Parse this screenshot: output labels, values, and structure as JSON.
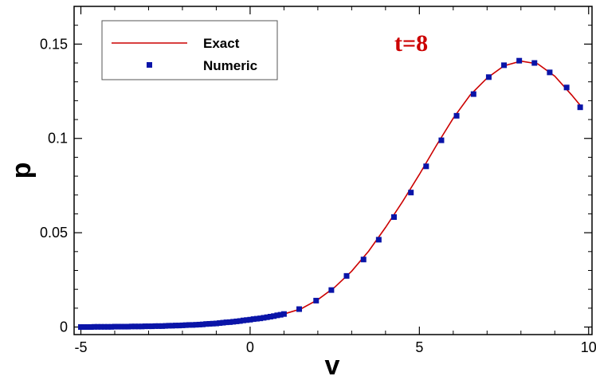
{
  "chart_data": {
    "type": "scatter",
    "xlabel": "v",
    "ylabel": "p",
    "xlim": [
      -5.2,
      10.1
    ],
    "ylim": [
      -0.004,
      0.17
    ],
    "xticks": [
      -5,
      0,
      5,
      10
    ],
    "yticks": [
      0,
      0.05,
      0.1,
      0.15
    ],
    "ytick_labels": [
      "0",
      "0.05",
      "0.1",
      "0.15"
    ],
    "xtick_labels": [
      "-5",
      "0",
      "5",
      "10"
    ],
    "annotation": "t=8",
    "legend_position": "top-left",
    "grid": false,
    "colors": {
      "exact": "#cc0000",
      "numeric": "#0a14a8",
      "annotation": "#cc0000"
    },
    "series": [
      {
        "name": "Exact",
        "style": "line",
        "x": [
          -5,
          -4.5,
          -4,
          -3.5,
          -3,
          -2.5,
          -2,
          -1.5,
          -1,
          -0.5,
          0,
          0.5,
          1,
          1.5,
          2,
          2.5,
          3,
          3.5,
          4,
          4.5,
          5,
          5.5,
          6,
          6.5,
          7,
          7.5,
          8,
          8.5,
          9,
          9.5,
          9.8
        ],
        "y": [
          0.0,
          0.0001,
          0.0002,
          0.0003,
          0.0004,
          0.0006,
          0.0009,
          0.0013,
          0.0019,
          0.0028,
          0.0039,
          0.0052,
          0.0069,
          0.0096,
          0.0145,
          0.0211,
          0.0296,
          0.0402,
          0.0528,
          0.0664,
          0.0809,
          0.0962,
          0.1107,
          0.123,
          0.132,
          0.1385,
          0.141,
          0.1395,
          0.133,
          0.123,
          0.1165
        ]
      },
      {
        "name": "Numeric",
        "style": "markers",
        "x": [
          -5.0,
          -4.9,
          -4.8,
          -4.7,
          -4.6,
          -4.5,
          -4.4,
          -4.3,
          -4.2,
          -4.1,
          -4.0,
          -3.9,
          -3.8,
          -3.7,
          -3.6,
          -3.5,
          -3.4,
          -3.3,
          -3.2,
          -3.1,
          -3.0,
          -2.9,
          -2.8,
          -2.7,
          -2.6,
          -2.5,
          -2.4,
          -2.3,
          -2.2,
          -2.1,
          -2.0,
          -1.9,
          -1.8,
          -1.7,
          -1.6,
          -1.5,
          -1.4,
          -1.3,
          -1.2,
          -1.1,
          -1.0,
          -0.9,
          -0.8,
          -0.7,
          -0.6,
          -0.5,
          -0.4,
          -0.3,
          -0.2,
          -0.1,
          0.0,
          0.1,
          0.2,
          0.3,
          0.4,
          0.5,
          0.6,
          0.7,
          0.8,
          0.9,
          1.0,
          1.45,
          1.95,
          2.4,
          2.85,
          3.35,
          3.8,
          4.25,
          4.75,
          5.2,
          5.65,
          6.1,
          6.6,
          7.05,
          7.5,
          7.95,
          8.4,
          8.85,
          9.35,
          9.75
        ],
        "y": [
          0.0,
          0.0,
          0.0,
          0.0,
          0.0001,
          0.0001,
          0.0001,
          0.0001,
          0.0001,
          0.0001,
          0.0002,
          0.0002,
          0.0002,
          0.0002,
          0.0002,
          0.0003,
          0.0003,
          0.0003,
          0.0003,
          0.0004,
          0.0004,
          0.0004,
          0.0005,
          0.0005,
          0.0005,
          0.0006,
          0.0007,
          0.0007,
          0.0008,
          0.0008,
          0.0009,
          0.001,
          0.0011,
          0.0011,
          0.0012,
          0.0013,
          0.0014,
          0.0016,
          0.0017,
          0.0018,
          0.0019,
          0.0021,
          0.0023,
          0.0025,
          0.0026,
          0.0028,
          0.003,
          0.0032,
          0.0035,
          0.0037,
          0.0039,
          0.0042,
          0.0044,
          0.0046,
          0.0049,
          0.0052,
          0.0055,
          0.0058,
          0.0062,
          0.0065,
          0.0069,
          0.0095,
          0.014,
          0.0196,
          0.0271,
          0.0358,
          0.0463,
          0.0583,
          0.0713,
          0.0852,
          0.099,
          0.112,
          0.1235,
          0.1325,
          0.1388,
          0.1412,
          0.14,
          0.135,
          0.127,
          0.1165
        ]
      }
    ]
  }
}
